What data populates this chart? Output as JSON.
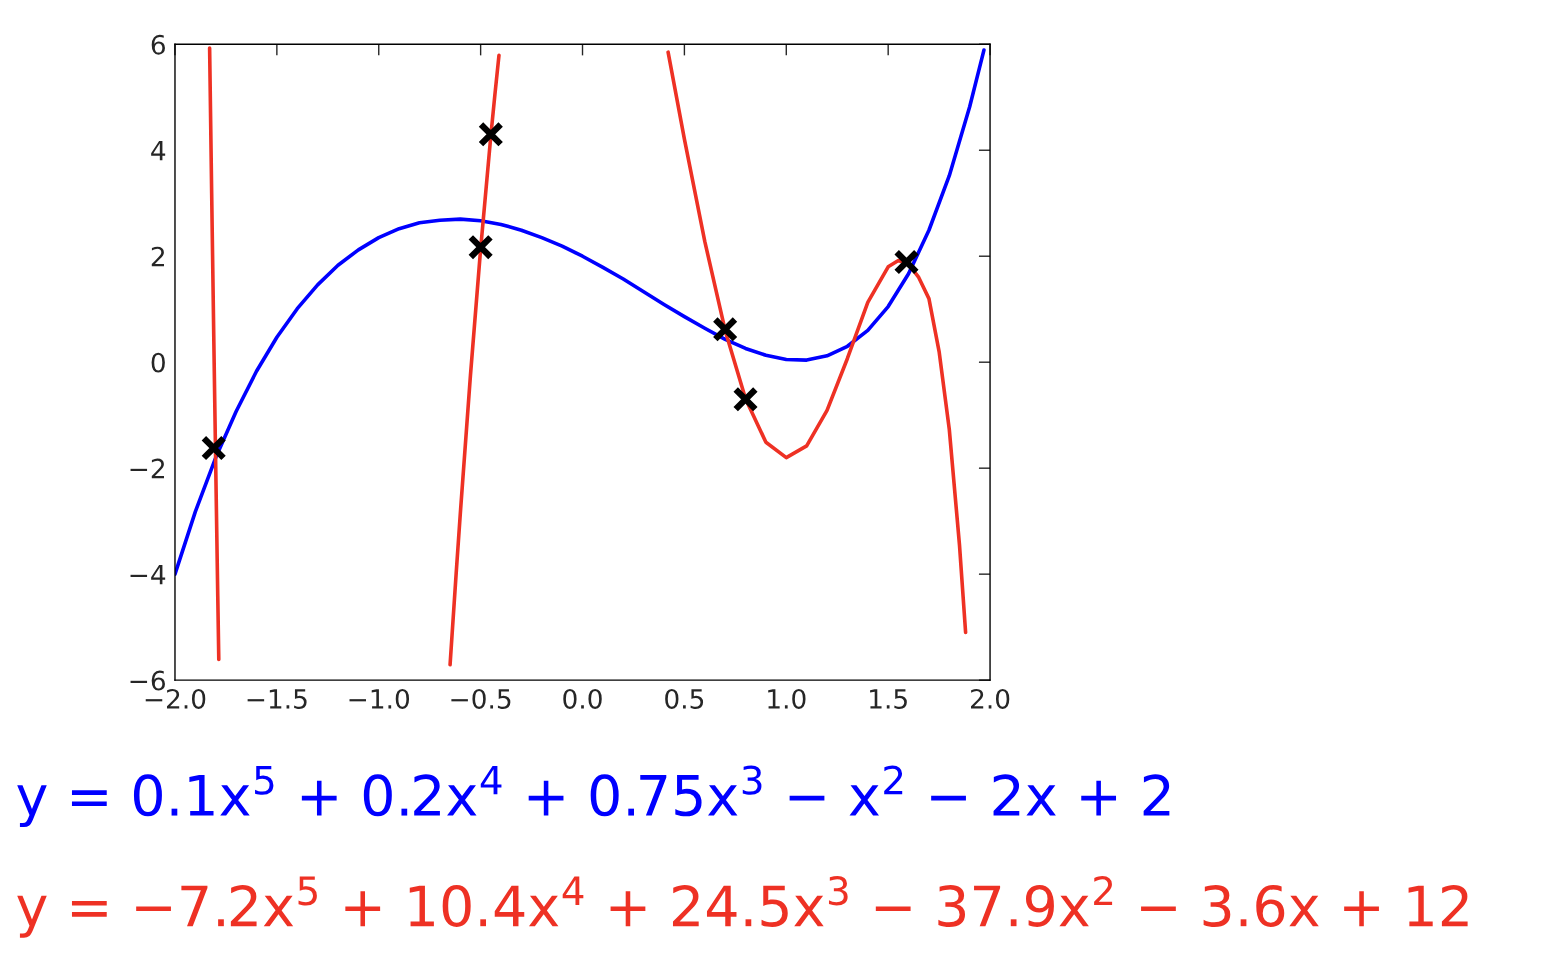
{
  "chart_data": {
    "type": "line",
    "xlim": [
      -2.0,
      2.0
    ],
    "ylim": [
      -6,
      6
    ],
    "xticks": [
      {
        "value": -2.0,
        "label": "−2.0"
      },
      {
        "value": -1.5,
        "label": "−1.5"
      },
      {
        "value": -1.0,
        "label": "−1.0"
      },
      {
        "value": -0.5,
        "label": "−0.5"
      },
      {
        "value": 0.0,
        "label": "0.0"
      },
      {
        "value": 0.5,
        "label": "0.5"
      },
      {
        "value": 1.0,
        "label": "1.0"
      },
      {
        "value": 1.5,
        "label": "1.5"
      },
      {
        "value": 2.0,
        "label": "2.0"
      }
    ],
    "yticks": [
      {
        "value": -6,
        "label": "−6"
      },
      {
        "value": -4,
        "label": "−4"
      },
      {
        "value": -2,
        "label": "−2"
      },
      0,
      2,
      4,
      6
    ],
    "series": [
      {
        "color": "#0000ff",
        "x": [
          -2.0,
          -1.9,
          -1.8,
          -1.7,
          -1.6,
          -1.5,
          -1.4,
          -1.3,
          -1.2,
          -1.1,
          -1.0,
          -0.9,
          -0.8,
          -0.7,
          -0.6,
          -0.5,
          -0.4,
          -0.3,
          -0.2,
          -0.1,
          0.0,
          0.1,
          0.2,
          0.3,
          0.4,
          0.5,
          0.6,
          0.7,
          0.8,
          0.9,
          1.0,
          1.1,
          1.2,
          1.3,
          1.4,
          1.5,
          1.6,
          1.7,
          1.8,
          1.9,
          1.97
        ],
        "values": [
          -4.0,
          -2.82,
          -1.8,
          -0.93,
          -0.17,
          0.47,
          1.01,
          1.46,
          1.83,
          2.12,
          2.35,
          2.52,
          2.63,
          2.68,
          2.7,
          2.67,
          2.6,
          2.49,
          2.35,
          2.19,
          2.0,
          1.79,
          1.57,
          1.33,
          1.09,
          0.86,
          0.64,
          0.43,
          0.26,
          0.13,
          0.05,
          0.04,
          0.12,
          0.3,
          0.6,
          1.05,
          1.67,
          2.49,
          3.52,
          4.82,
          5.89
        ]
      },
      {
        "color": "#ee3124",
        "x": [
          -1.83,
          -1.82,
          -1.81,
          -1.8,
          -1.79,
          -1.785,
          null,
          -0.65,
          -0.64,
          -0.62,
          -0.6,
          -0.55,
          -0.5,
          -0.45,
          -0.43,
          -0.41,
          null,
          0.42,
          0.5,
          0.6,
          0.7,
          0.8,
          0.9,
          1.0,
          1.1,
          1.2,
          1.3,
          1.4,
          1.5,
          1.55,
          1.6,
          1.65,
          1.7,
          1.75,
          1.8,
          1.85,
          1.88
        ],
        "values": [
          5.93,
          3.2,
          0.57,
          -1.97,
          -4.42,
          -5.61,
          null,
          -5.71,
          -5.13,
          -3.98,
          -2.87,
          -0.25,
          2.14,
          4.27,
          5.05,
          5.79,
          null,
          5.85,
          4.21,
          2.28,
          0.6,
          -0.69,
          -1.51,
          -1.8,
          -1.58,
          -0.91,
          0.07,
          1.13,
          1.8,
          1.92,
          1.85,
          1.6,
          1.2,
          0.2,
          -1.27,
          -3.45,
          -5.1
        ]
      },
      {
        "type": "scatter",
        "marker": "cross",
        "color": "#000000",
        "x": [
          -1.81,
          -0.45,
          -0.5,
          0.7,
          0.8,
          1.59
        ],
        "values": [
          -1.62,
          4.3,
          2.17,
          0.62,
          -0.7,
          1.89
        ]
      }
    ],
    "annotations": [
      "y = 0.1x$^{5}$ + 0.2x$^{4}$ + 0.75x$^{3}$ − x$^{2}$ − 2x + 2",
      "y = −7.2x$^{5}$ + 10.4x$^{4}$ + 24.5x$^{3}$ − 37.9x$^{2}$ − 3.6x + 12"
    ]
  }
}
